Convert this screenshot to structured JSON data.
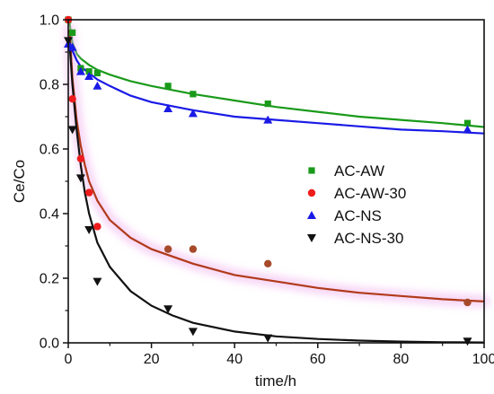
{
  "chart_data": {
    "type": "scatter",
    "xlabel": "time/h",
    "ylabel": "Ce/Co",
    "xlim": [
      0,
      100
    ],
    "ylim": [
      0,
      1.0
    ],
    "x_ticks": [
      "0",
      "20",
      "40",
      "60",
      "80",
      "100"
    ],
    "y_ticks": [
      "0.0",
      "0.2",
      "0.4",
      "0.6",
      "0.8",
      "1.0"
    ],
    "grid": false,
    "legend_position": "center-right",
    "series": [
      {
        "name": "AC-AW",
        "marker": "square",
        "marker_color": "#1a9a1a",
        "line_color": "#1a9a1a",
        "points": [
          [
            0,
            1.0
          ],
          [
            1,
            0.96
          ],
          [
            3,
            0.85
          ],
          [
            5,
            0.84
          ],
          [
            7,
            0.835
          ],
          [
            24,
            0.795
          ],
          [
            30,
            0.77
          ],
          [
            48,
            0.74
          ],
          [
            96,
            0.68
          ]
        ],
        "fit": [
          [
            0.3,
            0.99
          ],
          [
            1,
            0.93
          ],
          [
            2,
            0.895
          ],
          [
            3,
            0.88
          ],
          [
            5,
            0.86
          ],
          [
            7,
            0.845
          ],
          [
            10,
            0.83
          ],
          [
            15,
            0.81
          ],
          [
            20,
            0.795
          ],
          [
            30,
            0.77
          ],
          [
            40,
            0.75
          ],
          [
            50,
            0.73
          ],
          [
            60,
            0.715
          ],
          [
            70,
            0.7
          ],
          [
            80,
            0.69
          ],
          [
            90,
            0.68
          ],
          [
            100,
            0.668
          ]
        ]
      },
      {
        "name": "AC-AW-30",
        "marker": "circle",
        "marker_color": "#ee1c1c",
        "line_color": "#b03a1a",
        "points": [
          [
            0,
            1.0
          ],
          [
            1,
            0.755
          ],
          [
            3,
            0.57
          ],
          [
            5,
            0.465
          ],
          [
            7,
            0.36
          ],
          [
            24,
            0.29
          ],
          [
            30,
            0.29
          ],
          [
            48,
            0.245
          ],
          [
            96,
            0.125
          ]
        ],
        "fit": [
          [
            0.3,
            0.97
          ],
          [
            1,
            0.82
          ],
          [
            2,
            0.69
          ],
          [
            3,
            0.61
          ],
          [
            4,
            0.55
          ],
          [
            5,
            0.5
          ],
          [
            7,
            0.44
          ],
          [
            10,
            0.38
          ],
          [
            15,
            0.325
          ],
          [
            20,
            0.29
          ],
          [
            30,
            0.245
          ],
          [
            40,
            0.21
          ],
          [
            50,
            0.19
          ],
          [
            60,
            0.17
          ],
          [
            70,
            0.155
          ],
          [
            80,
            0.145
          ],
          [
            90,
            0.135
          ],
          [
            100,
            0.128
          ]
        ]
      },
      {
        "name": "AC-NS",
        "marker": "triangle-up",
        "marker_color": "#1a1ae6",
        "line_color": "#1a1ae6",
        "points": [
          [
            0,
            0.925
          ],
          [
            1,
            0.915
          ],
          [
            3,
            0.84
          ],
          [
            5,
            0.825
          ],
          [
            7,
            0.795
          ],
          [
            24,
            0.725
          ],
          [
            30,
            0.71
          ],
          [
            48,
            0.69
          ],
          [
            96,
            0.66
          ]
        ],
        "fit": [
          [
            0.3,
            0.93
          ],
          [
            1,
            0.905
          ],
          [
            2,
            0.875
          ],
          [
            3,
            0.855
          ],
          [
            5,
            0.835
          ],
          [
            7,
            0.815
          ],
          [
            10,
            0.795
          ],
          [
            15,
            0.765
          ],
          [
            20,
            0.745
          ],
          [
            30,
            0.72
          ],
          [
            40,
            0.7
          ],
          [
            50,
            0.69
          ],
          [
            60,
            0.68
          ],
          [
            70,
            0.67
          ],
          [
            80,
            0.66
          ],
          [
            90,
            0.655
          ],
          [
            100,
            0.648
          ]
        ]
      },
      {
        "name": "AC-NS-30",
        "marker": "triangle-down",
        "marker_color": "#111111",
        "line_color": "#111111",
        "points": [
          [
            0,
            0.935
          ],
          [
            1,
            0.66
          ],
          [
            3,
            0.51
          ],
          [
            5,
            0.35
          ],
          [
            7,
            0.19
          ],
          [
            24,
            0.105
          ],
          [
            30,
            0.035
          ],
          [
            48,
            0.015
          ],
          [
            96,
            0.005
          ]
        ],
        "fit": [
          [
            0.3,
            0.93
          ],
          [
            1,
            0.8
          ],
          [
            2,
            0.66
          ],
          [
            3,
            0.55
          ],
          [
            4,
            0.465
          ],
          [
            5,
            0.4
          ],
          [
            7,
            0.31
          ],
          [
            10,
            0.235
          ],
          [
            15,
            0.16
          ],
          [
            20,
            0.115
          ],
          [
            25,
            0.085
          ],
          [
            30,
            0.062
          ],
          [
            40,
            0.035
          ],
          [
            50,
            0.02
          ],
          [
            60,
            0.012
          ],
          [
            70,
            0.007
          ],
          [
            80,
            0.004
          ],
          [
            90,
            0.002
          ],
          [
            100,
            0.001
          ]
        ]
      }
    ]
  }
}
